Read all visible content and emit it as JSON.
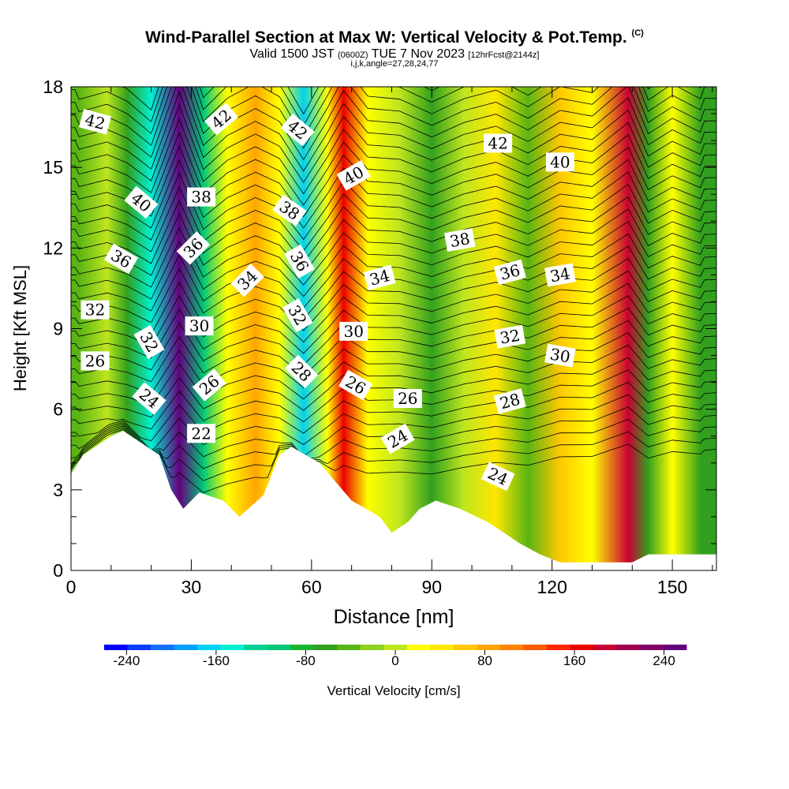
{
  "header": {
    "title_main": "Wind-Parallel Section at Max W: Vertical Velocity & Pot.Temp.",
    "title_copyright": "(C)",
    "valid_prefix": "Valid 1500 JST",
    "valid_utc": "(0600Z)",
    "valid_date": "TUE 7 Nov 2023",
    "valid_fcst": "[12hrFcst@2144z]",
    "ijk": "i,j,k,angle=27,28,24,77"
  },
  "chart_data": {
    "type": "heatmap",
    "title": "Wind-Parallel Section at Max W: Vertical Velocity & Pot.Temp.",
    "xlabel": "Distance [nm]",
    "ylabel": "Height [Kft MSL]",
    "xlim": [
      0,
      161
    ],
    "ylim": [
      0,
      18
    ],
    "x_ticks": [
      "0",
      "30",
      "60",
      "90",
      "120",
      "150"
    ],
    "y_ticks": [
      "0",
      "3",
      "6",
      "9",
      "12",
      "15",
      "18"
    ],
    "colorbar": {
      "label": "Vertical Velocity [cm/s]",
      "range": [
        -260,
        260
      ],
      "tick_labels": [
        "-240",
        "-160",
        "-80",
        "0",
        "80",
        "160",
        "240"
      ],
      "colors": [
        "#0000ff",
        "#0a3cff",
        "#1470ff",
        "#00a0ff",
        "#00d2f0",
        "#00f0d2",
        "#00d296",
        "#00c878",
        "#19b432",
        "#32a01e",
        "#5ab414",
        "#8cd21e",
        "#bee61e",
        "#ffff00",
        "#ffe600",
        "#ffc800",
        "#ffa500",
        "#ff8200",
        "#ff5a00",
        "#ff2800",
        "#eb0000",
        "#c80032",
        "#a00050",
        "#820064",
        "#64007d"
      ]
    },
    "vertical_velocity_columns": [
      {
        "x": 2,
        "w": -45
      },
      {
        "x": 9,
        "w": -10
      },
      {
        "x": 14,
        "w": -55
      },
      {
        "x": 20,
        "w": -150
      },
      {
        "x": 27,
        "w": 240
      },
      {
        "x": 33,
        "w": -95
      },
      {
        "x": 39,
        "w": 15
      },
      {
        "x": 46,
        "w": 85
      },
      {
        "x": 52,
        "w": 20
      },
      {
        "x": 58,
        "w": -170
      },
      {
        "x": 64,
        "w": 25
      },
      {
        "x": 68,
        "w": 170
      },
      {
        "x": 74,
        "w": 20
      },
      {
        "x": 82,
        "w": 5
      },
      {
        "x": 90,
        "w": -65
      },
      {
        "x": 98,
        "w": 5
      },
      {
        "x": 106,
        "w": 45
      },
      {
        "x": 114,
        "w": -35
      },
      {
        "x": 122,
        "w": 60
      },
      {
        "x": 130,
        "w": 30
      },
      {
        "x": 139,
        "w": 180
      },
      {
        "x": 144,
        "w": -60
      },
      {
        "x": 150,
        "w": 15
      },
      {
        "x": 157,
        "w": -55
      }
    ],
    "terrain": [
      {
        "x": 0,
        "h": 3.6
      },
      {
        "x": 3,
        "h": 4.3
      },
      {
        "x": 6,
        "h": 4.6
      },
      {
        "x": 10,
        "h": 5.0
      },
      {
        "x": 13,
        "h": 5.2
      },
      {
        "x": 22,
        "h": 4.3
      },
      {
        "x": 25,
        "h": 3.0
      },
      {
        "x": 28,
        "h": 2.3
      },
      {
        "x": 32,
        "h": 2.9
      },
      {
        "x": 38,
        "h": 2.6
      },
      {
        "x": 42,
        "h": 2.0
      },
      {
        "x": 48,
        "h": 2.8
      },
      {
        "x": 52,
        "h": 4.3
      },
      {
        "x": 55,
        "h": 4.6
      },
      {
        "x": 62,
        "h": 4.0
      },
      {
        "x": 66,
        "h": 3.3
      },
      {
        "x": 70,
        "h": 2.6
      },
      {
        "x": 77,
        "h": 2.0
      },
      {
        "x": 80,
        "h": 1.4
      },
      {
        "x": 84,
        "h": 1.8
      },
      {
        "x": 87,
        "h": 2.3
      },
      {
        "x": 91,
        "h": 2.6
      },
      {
        "x": 97,
        "h": 2.3
      },
      {
        "x": 104,
        "h": 1.8
      },
      {
        "x": 108,
        "h": 1.4
      },
      {
        "x": 112,
        "h": 1.0
      },
      {
        "x": 117,
        "h": 0.6
      },
      {
        "x": 122,
        "h": 0.3
      },
      {
        "x": 140,
        "h": 0.3
      },
      {
        "x": 144,
        "h": 0.6
      },
      {
        "x": 161,
        "h": 0.6
      }
    ],
    "theta_levels": [
      22,
      24,
      26,
      28,
      30,
      32,
      34,
      36,
      38,
      40,
      42
    ],
    "isentrope_labels": [
      {
        "text": "42",
        "x": 6,
        "y": 16.7,
        "rot": 15
      },
      {
        "text": "42",
        "x": 37.5,
        "y": 16.8,
        "rot": -40
      },
      {
        "text": "42",
        "x": 56.5,
        "y": 16.4,
        "rot": 40
      },
      {
        "text": "42",
        "x": 106.5,
        "y": 15.9,
        "rot": 0
      },
      {
        "text": "40",
        "x": 17.5,
        "y": 13.7,
        "rot": 40
      },
      {
        "text": "40",
        "x": 70.5,
        "y": 14.7,
        "rot": -30
      },
      {
        "text": "40",
        "x": 122,
        "y": 15.2,
        "rot": 0
      },
      {
        "text": "38",
        "x": 32.5,
        "y": 13.9,
        "rot": 0
      },
      {
        "text": "38",
        "x": 54.5,
        "y": 13.4,
        "rot": 35
      },
      {
        "text": "38",
        "x": 97,
        "y": 12.3,
        "rot": -10
      },
      {
        "text": "36",
        "x": 12.5,
        "y": 11.6,
        "rot": 30
      },
      {
        "text": "36",
        "x": 30.5,
        "y": 12.0,
        "rot": -45
      },
      {
        "text": "36",
        "x": 57,
        "y": 11.5,
        "rot": 60
      },
      {
        "text": "36",
        "x": 109.5,
        "y": 11.1,
        "rot": -15
      },
      {
        "text": "34",
        "x": 44,
        "y": 10.8,
        "rot": -45
      },
      {
        "text": "34",
        "x": 77,
        "y": 10.9,
        "rot": -15
      },
      {
        "text": "34",
        "x": 122,
        "y": 11.0,
        "rot": -10
      },
      {
        "text": "32",
        "x": 6,
        "y": 9.7,
        "rot": 0
      },
      {
        "text": "32",
        "x": 19.5,
        "y": 8.5,
        "rot": 60
      },
      {
        "text": "32",
        "x": 56.5,
        "y": 9.5,
        "rot": 60
      },
      {
        "text": "32",
        "x": 109.5,
        "y": 8.7,
        "rot": -10
      },
      {
        "text": "30",
        "x": 32,
        "y": 9.1,
        "rot": 0
      },
      {
        "text": "30",
        "x": 70.5,
        "y": 8.9,
        "rot": 0
      },
      {
        "text": "30",
        "x": 122,
        "y": 8.0,
        "rot": 10
      },
      {
        "text": "26",
        "x": 6,
        "y": 7.8,
        "rot": 0
      },
      {
        "text": "26",
        "x": 34.5,
        "y": 6.9,
        "rot": -40
      },
      {
        "text": "26",
        "x": 71,
        "y": 6.9,
        "rot": 30
      },
      {
        "text": "26",
        "x": 84,
        "y": 6.4,
        "rot": 0
      },
      {
        "text": "28",
        "x": 57.5,
        "y": 7.4,
        "rot": 45
      },
      {
        "text": "28",
        "x": 109.5,
        "y": 6.3,
        "rot": -15
      },
      {
        "text": "24",
        "x": 19.5,
        "y": 6.4,
        "rot": 40
      },
      {
        "text": "24",
        "x": 81.5,
        "y": 4.9,
        "rot": -30
      },
      {
        "text": "24",
        "x": 106.5,
        "y": 3.5,
        "rot": 25
      },
      {
        "text": "22",
        "x": 32.5,
        "y": 5.1,
        "rot": 0
      }
    ]
  }
}
